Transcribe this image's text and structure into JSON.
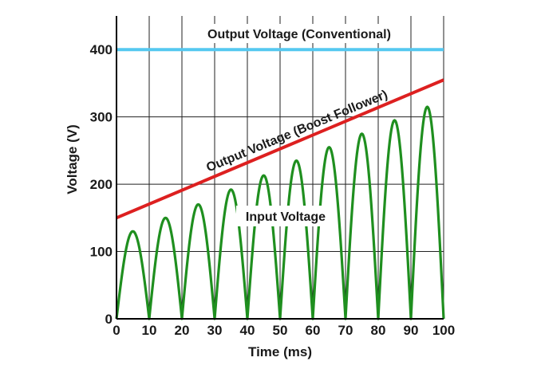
{
  "chart_data": {
    "type": "line",
    "xlabel": "Time (ms)",
    "ylabel": "Voltage (V)",
    "xlim": [
      0,
      100
    ],
    "ylim": [
      0,
      450
    ],
    "x_ticks": [
      0,
      10,
      20,
      30,
      40,
      50,
      60,
      70,
      80,
      90,
      100
    ],
    "y_ticks": [
      0,
      100,
      200,
      300,
      400
    ],
    "grid": true,
    "series": [
      {
        "name": "Output Voltage (Conventional)",
        "color": "#55c8f0",
        "x": [
          0,
          100
        ],
        "y": [
          400,
          400
        ]
      },
      {
        "name": "Output Voltage (Boost Follower)",
        "color": "#dd2020",
        "x": [
          0,
          100
        ],
        "y": [
          150,
          355
        ]
      },
      {
        "name": "Input Voltage",
        "color": "#1f8f1f",
        "shape": "full-wave rectified sine, period 10 ms, rising peaks",
        "x": [
          0,
          5,
          10,
          15,
          20,
          25,
          30,
          35,
          40,
          45,
          50,
          55,
          60,
          65,
          70,
          75,
          80,
          85,
          90,
          95,
          100
        ],
        "y": [
          0,
          130,
          0,
          150,
          0,
          170,
          0,
          192,
          0,
          213,
          0,
          235,
          0,
          255,
          0,
          275,
          0,
          295,
          0,
          315,
          0
        ]
      }
    ],
    "annotations": [
      "Output Voltage (Conventional)",
      "Output Voltage (Boost Follower)",
      "Input Voltage"
    ]
  },
  "colors": {
    "grid": "#222222",
    "axis": "#000000",
    "label_box": "#ffffff"
  }
}
